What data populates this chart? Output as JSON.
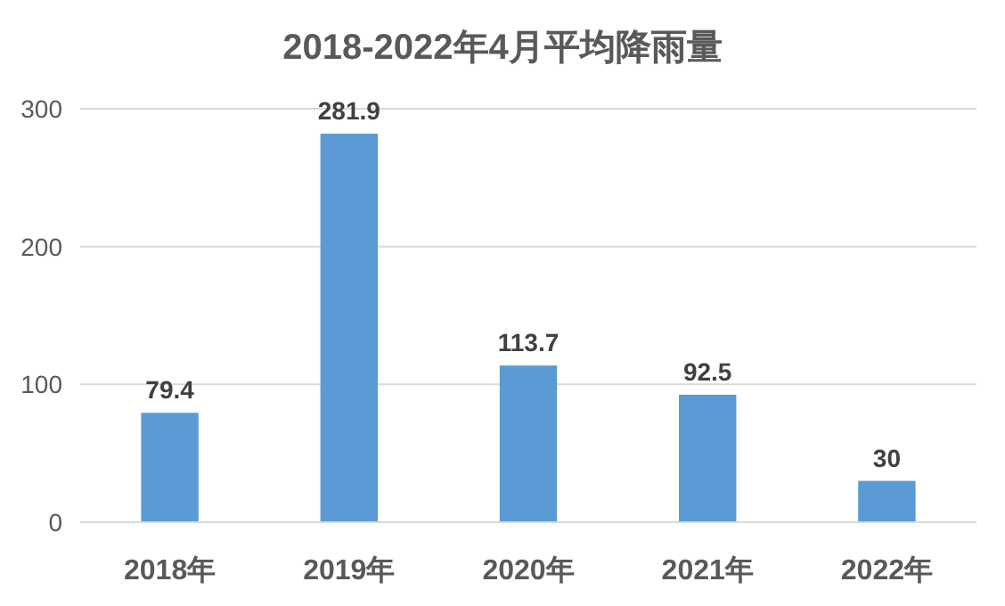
{
  "chart_data": {
    "type": "bar",
    "title": "2018-2022年4月平均降雨量",
    "categories": [
      "2018年",
      "2019年",
      "2020年",
      "2021年",
      "2022年"
    ],
    "values": [
      79.4,
      281.9,
      113.7,
      92.5,
      30
    ],
    "color": "#5b9bd5",
    "ylim": [
      0,
      300
    ],
    "yticks": [
      0,
      100,
      200,
      300
    ],
    "grid": "y",
    "data_labels": true
  }
}
